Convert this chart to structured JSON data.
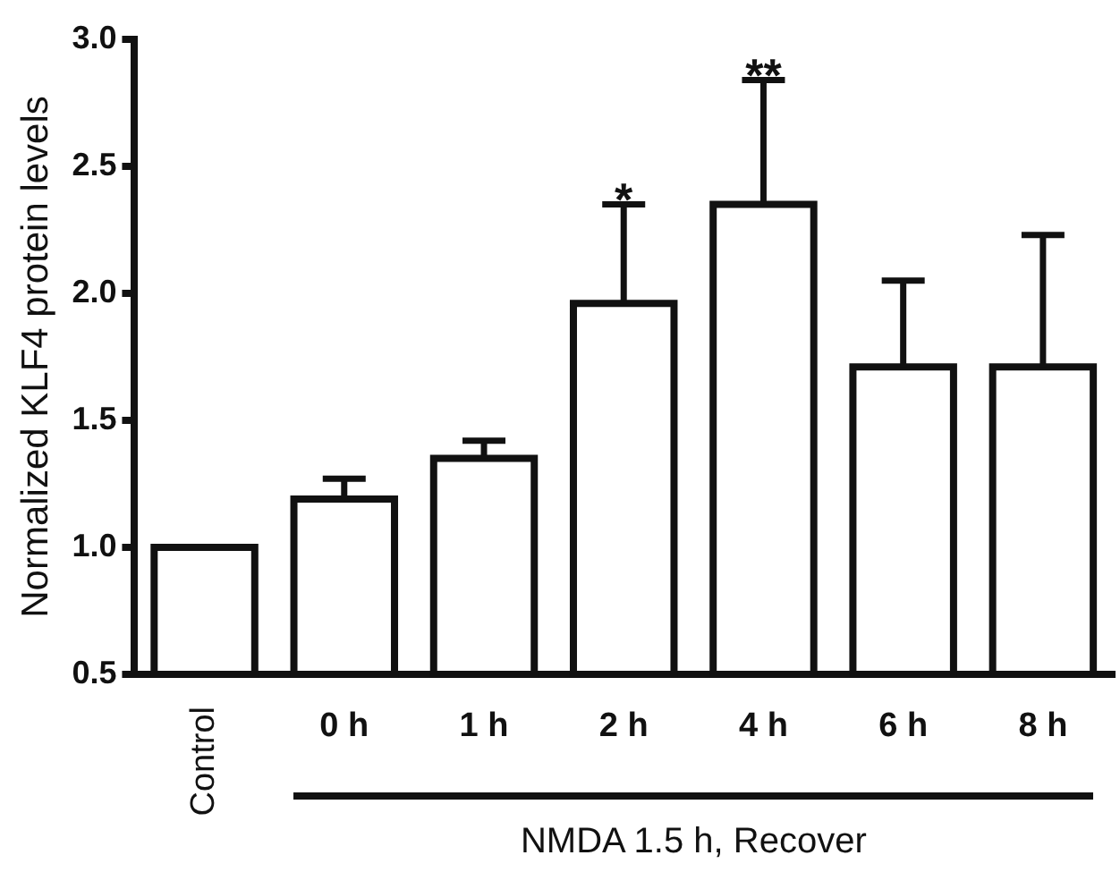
{
  "chart_data": {
    "type": "bar",
    "ylabel": "Normalized KLF4 protein levels",
    "categories": [
      "Control",
      "0 h",
      "1 h",
      "2 h",
      "4 h",
      "6 h",
      "8 h"
    ],
    "values": [
      1.0,
      1.19,
      1.35,
      1.96,
      2.35,
      1.71,
      1.71
    ],
    "errors": [
      null,
      [
        1.19,
        1.27
      ],
      [
        1.35,
        1.42
      ],
      [
        1.96,
        2.35
      ],
      [
        2.35,
        2.84
      ],
      [
        1.71,
        2.05
      ],
      [
        1.71,
        2.23
      ]
    ],
    "color": "#ffffff",
    "ylim": [
      0.5,
      3.0
    ],
    "yticks": [
      0.5,
      {
        "value": 1,
        "label": "1.0"
      },
      1.5,
      {
        "value": 2,
        "label": "2.0"
      },
      2.5,
      {
        "value": 3,
        "label": "3.0"
      }
    ],
    "grid": false,
    "legend": false,
    "annotations": [
      {
        "text": "*",
        "x": "2 h",
        "y": 2.35
      },
      {
        "text": "**",
        "x": "4 h",
        "y": 2.84
      },
      "NMDA 1.5 h, Recover"
    ]
  }
}
